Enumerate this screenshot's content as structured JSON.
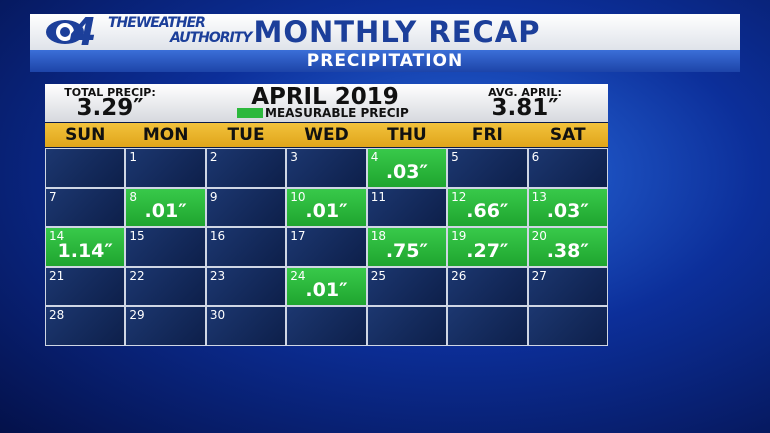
{
  "header": {
    "channel": "4",
    "brand": [
      "THEWEATHER",
      "AUTHORITY"
    ],
    "title": "MONTHLY RECAP",
    "subtitle": "PRECIPITATION"
  },
  "calendar": {
    "total_label": "TOTAL PRECIP:",
    "total_value": "3.29″",
    "month": "APRIL 2019",
    "legend": "MEASURABLE PRECIP",
    "avg_label": "AVG. APRIL:",
    "avg_value": "3.81″",
    "weekdays": [
      "SUN",
      "MON",
      "TUE",
      "WED",
      "THU",
      "FRI",
      "SAT"
    ],
    "weeks": [
      [
        null,
        {
          "day": "1",
          "precip": null
        },
        {
          "day": "2",
          "precip": null
        },
        {
          "day": "3",
          "precip": null
        },
        {
          "day": "4",
          "precip": ".03″"
        },
        {
          "day": "5",
          "precip": null
        },
        {
          "day": "6",
          "precip": null
        }
      ],
      [
        {
          "day": "7",
          "precip": null
        },
        {
          "day": "8",
          "precip": ".01″"
        },
        {
          "day": "9",
          "precip": null
        },
        {
          "day": "10",
          "precip": ".01″"
        },
        {
          "day": "11",
          "precip": null
        },
        {
          "day": "12",
          "precip": ".66″"
        },
        {
          "day": "13",
          "precip": ".03″"
        }
      ],
      [
        {
          "day": "14",
          "precip": "1.14″"
        },
        {
          "day": "15",
          "precip": null
        },
        {
          "day": "16",
          "precip": null
        },
        {
          "day": "17",
          "precip": null
        },
        {
          "day": "18",
          "precip": ".75″"
        },
        {
          "day": "19",
          "precip": ".27″"
        },
        {
          "day": "20",
          "precip": ".38″"
        }
      ],
      [
        {
          "day": "21",
          "precip": null
        },
        {
          "day": "22",
          "precip": null
        },
        {
          "day": "23",
          "precip": null
        },
        {
          "day": "24",
          "precip": ".01″"
        },
        {
          "day": "25",
          "precip": null
        },
        {
          "day": "26",
          "precip": null
        },
        {
          "day": "27",
          "precip": null
        }
      ],
      [
        {
          "day": "28",
          "precip": null
        },
        {
          "day": "29",
          "precip": null
        },
        {
          "day": "30",
          "precip": null
        },
        null,
        null,
        null,
        null
      ]
    ]
  }
}
